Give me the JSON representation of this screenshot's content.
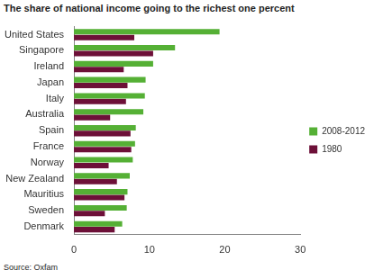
{
  "chart_data": {
    "type": "bar",
    "orientation": "horizontal",
    "title": "The share of national income going to the richest one percent",
    "annotations": [
      "Source: Oxfam"
    ],
    "categories": [
      "United States",
      "Singapore",
      "Ireland",
      "Japan",
      "Italy",
      "Australia",
      "Spain",
      "France",
      "Norway",
      "New Zealand",
      "Mauritius",
      "Sweden",
      "Denmark"
    ],
    "series": [
      {
        "name": "2008-2012",
        "color": "#55b035",
        "values": [
          19.3,
          13.4,
          10.5,
          9.5,
          9.4,
          9.2,
          8.2,
          8.1,
          7.8,
          7.4,
          7.1,
          7.0,
          6.4
        ]
      },
      {
        "name": "1980",
        "color": "#6d1038",
        "values": [
          8.0,
          10.5,
          6.6,
          7.1,
          6.9,
          4.8,
          7.5,
          7.6,
          4.6,
          5.7,
          6.7,
          4.1,
          5.4
        ]
      }
    ],
    "xlim": [
      0,
      30
    ],
    "xticks": [
      0,
      10,
      20,
      30
    ],
    "grid": false,
    "legend": "right"
  }
}
